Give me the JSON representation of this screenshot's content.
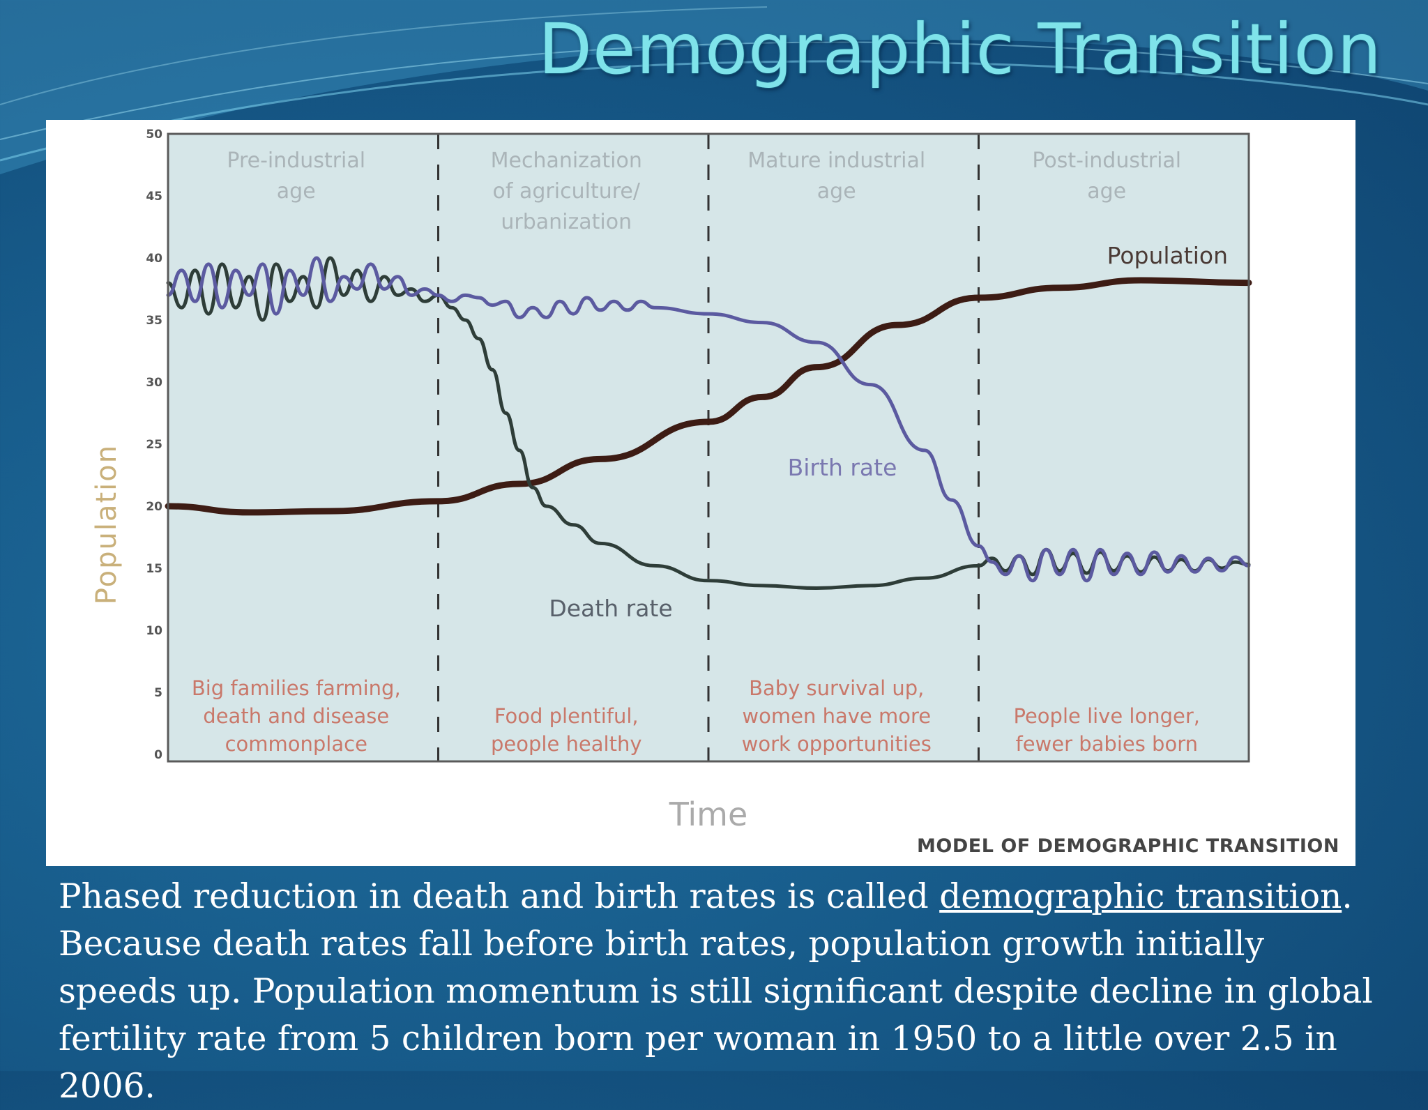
{
  "slide": {
    "title": "Demographic Transition",
    "caption": {
      "before": "Phased reduction in death and birth rates is called ",
      "term": "demographic transition",
      "after": ". Because death rates fall before birth rates, population growth initially speeds up. Population momentum is still significant despite decline in global fertility rate from 5 children born per woman in 1950 to a little over 2.5 in 2006."
    }
  },
  "colors": {
    "plot_background": "#d6e6e8",
    "population": "#3d1c14",
    "birth_rate": "#5b5aa0",
    "death_rate": "#2e3d38",
    "background": "#175b8a",
    "title": "#7fe3ea"
  },
  "chart_data": {
    "type": "line",
    "xlabel": "Time",
    "ylabel": "Population",
    "caption": "MODEL OF DEMOGRAPHIC TRANSITION",
    "ylim": [
      0,
      50
    ],
    "yticks": [
      0,
      5,
      10,
      15,
      20,
      25,
      30,
      35,
      40,
      45,
      50
    ],
    "xlim": [
      0,
      4
    ],
    "grid": false,
    "stages": [
      {
        "name_lines": [
          "Pre-industrial",
          "age"
        ],
        "description_lines": [
          "Big families farming,",
          "death and disease",
          "commonplace"
        ],
        "start": 0,
        "end": 1
      },
      {
        "name_lines": [
          "Mechanization",
          "of agriculture/",
          "urbanization"
        ],
        "description_lines": [
          "Food plentiful,",
          "people healthy"
        ],
        "start": 1,
        "end": 2
      },
      {
        "name_lines": [
          "Mature industrial",
          "age"
        ],
        "description_lines": [
          "Baby survival up,",
          "women have more",
          "work opportunities"
        ],
        "start": 2,
        "end": 3
      },
      {
        "name_lines": [
          "Post-industrial",
          "age"
        ],
        "description_lines": [
          "People live longer,",
          "fewer babies born"
        ],
        "start": 3,
        "end": 4
      }
    ],
    "series": [
      {
        "name": "Population",
        "x": [
          0,
          0.3,
          0.6,
          1.0,
          1.3,
          1.6,
          2.0,
          2.2,
          2.4,
          2.7,
          3.0,
          3.3,
          3.6,
          4.0
        ],
        "y": [
          20,
          19.5,
          19.6,
          20.4,
          21.8,
          23.8,
          26.8,
          28.8,
          31.2,
          34.6,
          36.8,
          37.6,
          38.2,
          38.0
        ]
      },
      {
        "name": "Birth rate",
        "x": [
          0,
          0.05,
          0.1,
          0.15,
          0.2,
          0.25,
          0.3,
          0.35,
          0.4,
          0.45,
          0.5,
          0.55,
          0.6,
          0.65,
          0.7,
          0.75,
          0.8,
          0.85,
          0.9,
          0.95,
          1.0,
          1.05,
          1.1,
          1.15,
          1.2,
          1.25,
          1.3,
          1.35,
          1.4,
          1.45,
          1.5,
          1.55,
          1.6,
          1.65,
          1.7,
          1.75,
          1.8,
          2.0,
          2.2,
          2.4,
          2.6,
          2.8,
          2.9,
          3.0,
          3.05,
          3.1,
          3.15,
          3.2,
          3.25,
          3.3,
          3.35,
          3.4,
          3.45,
          3.5,
          3.55,
          3.6,
          3.65,
          3.7,
          3.75,
          3.8,
          3.85,
          3.9,
          3.95,
          4.0
        ],
        "y": [
          37,
          39,
          36.5,
          39.5,
          36,
          39,
          37,
          39.5,
          35.5,
          39,
          37,
          40,
          36.5,
          38.5,
          37.5,
          39.5,
          37.5,
          38.5,
          37,
          37.5,
          37,
          36.5,
          37,
          36.8,
          36.2,
          36.5,
          35.2,
          36,
          35.2,
          36.5,
          35.5,
          36.8,
          35.8,
          36.5,
          35.8,
          36.5,
          36,
          35.5,
          34.8,
          33.2,
          29.8,
          24.5,
          20.5,
          16.8,
          15.5,
          14.5,
          16,
          14,
          16.5,
          14.5,
          16.5,
          14,
          16.5,
          14.5,
          16.2,
          14.5,
          16.3,
          14.7,
          16,
          14.7,
          15.8,
          14.8,
          15.9,
          15.2
        ]
      },
      {
        "name": "Death rate",
        "x": [
          0,
          0.05,
          0.1,
          0.15,
          0.2,
          0.25,
          0.3,
          0.35,
          0.4,
          0.45,
          0.5,
          0.55,
          0.6,
          0.65,
          0.7,
          0.75,
          0.8,
          0.85,
          0.9,
          0.95,
          1.0,
          1.05,
          1.1,
          1.15,
          1.2,
          1.25,
          1.3,
          1.35,
          1.4,
          1.5,
          1.6,
          1.8,
          2.0,
          2.2,
          2.4,
          2.6,
          2.8,
          3.0,
          3.05,
          3.1,
          3.15,
          3.2,
          3.25,
          3.3,
          3.35,
          3.4,
          3.45,
          3.5,
          3.55,
          3.6,
          3.65,
          3.7,
          3.75,
          3.8,
          3.85,
          3.9,
          3.95,
          4.0
        ],
        "y": [
          38,
          36,
          39,
          35.5,
          39.5,
          36,
          38.5,
          35,
          39.5,
          36.5,
          38.5,
          36,
          40,
          37,
          39,
          36.5,
          38.5,
          37,
          37.5,
          36.5,
          37,
          36,
          35,
          33.5,
          31,
          27.5,
          24.5,
          21.5,
          20,
          18.5,
          17,
          15.2,
          14,
          13.6,
          13.4,
          13.6,
          14.2,
          15.2,
          15.8,
          14.8,
          16,
          14.5,
          16.5,
          14.8,
          16.2,
          14.6,
          16.3,
          14.8,
          16,
          14.7,
          15.9,
          14.8,
          15.7,
          14.8,
          15.7,
          15,
          15.5,
          15.3
        ]
      }
    ],
    "series_labels": [
      {
        "text": "Population"
      },
      {
        "text": "Birth rate"
      },
      {
        "text": "Death rate"
      }
    ]
  }
}
